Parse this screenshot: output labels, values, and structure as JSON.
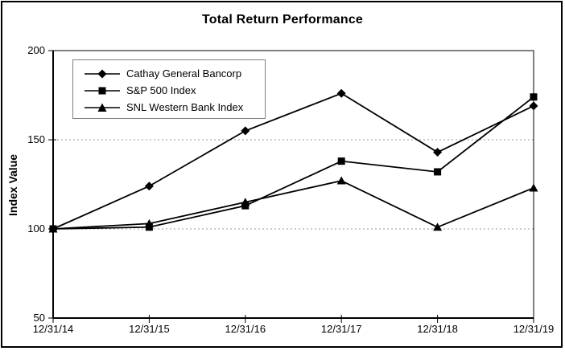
{
  "page": {
    "background": "#ffffff",
    "border_color": "#000000"
  },
  "chart_data": {
    "type": "line",
    "title": "Total Return Performance",
    "xlabel": "",
    "ylabel": "Index Value",
    "categories": [
      "12/31/14",
      "12/31/15",
      "12/31/16",
      "12/31/17",
      "12/31/18",
      "12/31/19"
    ],
    "series": [
      {
        "name": "Cathay General Bancorp",
        "marker": "diamond",
        "values": [
          100,
          124,
          155,
          176,
          143,
          169
        ]
      },
      {
        "name": "S&P 500 Index",
        "marker": "square",
        "values": [
          100,
          101,
          113,
          138,
          132,
          174
        ]
      },
      {
        "name": "SNL Western Bank Index",
        "marker": "triangle",
        "values": [
          100,
          103,
          115,
          127,
          101,
          123
        ]
      }
    ],
    "ylim": [
      50,
      200
    ],
    "yticks": [
      50,
      100,
      150,
      200
    ],
    "gridlines_at": [
      100,
      150
    ],
    "grid": "dashed-horizontal",
    "legend_position": "top-left-inside",
    "line_color": "#000000",
    "gridline_color": "#999999",
    "background": "#ffffff"
  }
}
